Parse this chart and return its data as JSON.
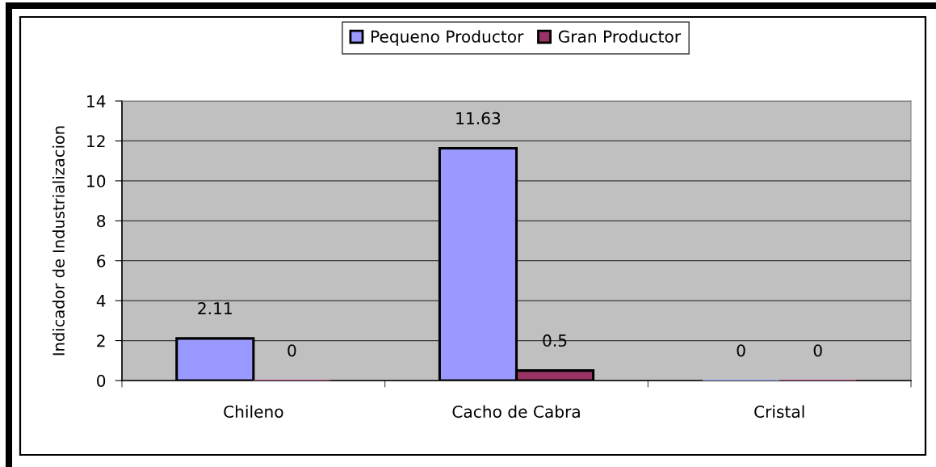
{
  "chart_data": {
    "type": "bar",
    "categories": [
      "Chileno",
      "Cacho de Cabra",
      "Cristal"
    ],
    "series": [
      {
        "name": "Pequeno Productor",
        "color": "#9999ff",
        "values": [
          2.11,
          11.63,
          0
        ]
      },
      {
        "name": "Gran Productor",
        "color": "#993366",
        "values": [
          0,
          0.5,
          0
        ]
      }
    ],
    "ylabel": "Indicador de Industrializacion",
    "ylim": [
      0,
      14
    ],
    "yticks": [
      0,
      2,
      4,
      6,
      8,
      10,
      12,
      14
    ],
    "grid": "y",
    "legend": "top",
    "data_labels": true
  }
}
